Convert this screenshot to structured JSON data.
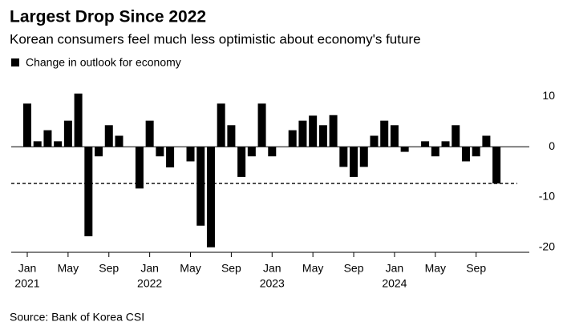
{
  "chart_data": {
    "type": "bar",
    "title": "Largest Drop Since 2022",
    "subtitle": "Korean consumers feel much less optimistic about economy's future",
    "source": "Source: Bank of Korea CSI",
    "categories": [
      "Jan",
      null,
      null,
      null,
      "May",
      null,
      null,
      null,
      "Sep",
      null,
      null,
      null,
      "Jan",
      null,
      null,
      null,
      "May",
      null,
      null,
      null,
      "Sep",
      null,
      null,
      null,
      "Jan",
      null,
      null,
      null,
      "May",
      null,
      null,
      null,
      "Sep",
      null,
      null,
      null,
      "Jan",
      null,
      null,
      null,
      "May",
      null,
      null,
      null,
      "Sep",
      null,
      null
    ],
    "category_years": [
      "2021",
      null,
      null,
      null,
      null,
      null,
      null,
      null,
      null,
      null,
      null,
      null,
      "2022",
      null,
      null,
      null,
      null,
      null,
      null,
      null,
      null,
      null,
      null,
      null,
      "2023",
      null,
      null,
      null,
      null,
      null,
      null,
      null,
      null,
      null,
      null,
      null,
      "2024",
      null,
      null,
      null,
      null,
      null,
      null,
      null,
      null,
      null,
      null
    ],
    "series": [
      {
        "name": "Change in outlook for economy",
        "color": "#000000",
        "values": [
          8.6,
          1.1,
          3.3,
          1.1,
          5.2,
          10.6,
          -17.8,
          -1.9,
          4.3,
          2.2,
          0,
          -8.3,
          5.2,
          -1.9,
          -4.1,
          0,
          -2.9,
          -15.7,
          -20,
          8.6,
          4.3,
          -6,
          -1.9,
          8.6,
          -1.9,
          0,
          3.3,
          5.2,
          6.2,
          4.3,
          6.3,
          -4,
          -6,
          -4,
          2.2,
          5.2,
          4.3,
          -1,
          0,
          1.1,
          -1.9,
          1.1,
          4.3,
          -2.9,
          -1.9,
          2.2,
          -7.3
        ]
      }
    ],
    "reference_line": -7.3,
    "ylim": [
      -21,
      12
    ],
    "yticks": [
      10,
      0,
      -10,
      -20
    ],
    "grid": false
  }
}
